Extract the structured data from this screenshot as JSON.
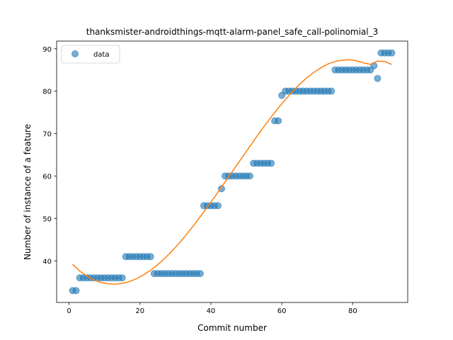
{
  "chart_data": {
    "type": "scatter",
    "title": "thanksmister-androidthings-mqtt-alarm-panel_safe_call-polinomial_3",
    "xlabel": "Commit number",
    "ylabel": "Number of instance of a feature",
    "xlim": [
      -3.5,
      95.5
    ],
    "ylim": [
      30.2,
      91.8
    ],
    "xticks": [
      0,
      20,
      40,
      60,
      80
    ],
    "yticks": [
      40,
      50,
      60,
      70,
      80,
      90
    ],
    "legend": {
      "position": "top-left",
      "entries": [
        "data"
      ]
    },
    "grid": false,
    "series": [
      {
        "name": "data",
        "kind": "points",
        "color": "#1f77b4",
        "x": [
          1,
          2,
          3,
          4,
          5,
          6,
          7,
          8,
          9,
          10,
          11,
          12,
          13,
          14,
          15,
          16,
          17,
          18,
          19,
          20,
          21,
          22,
          23,
          24,
          25,
          26,
          27,
          28,
          29,
          30,
          31,
          32,
          33,
          34,
          35,
          36,
          37,
          38,
          39,
          40,
          41,
          42,
          43,
          44,
          45,
          46,
          47,
          48,
          49,
          50,
          51,
          52,
          53,
          54,
          55,
          56,
          57,
          58,
          59,
          60,
          61,
          62,
          63,
          64,
          65,
          66,
          67,
          68,
          69,
          70,
          71,
          72,
          73,
          74,
          75,
          76,
          77,
          78,
          79,
          80,
          81,
          82,
          83,
          84,
          85,
          86,
          87,
          88,
          89,
          90,
          91
        ],
        "y": [
          33,
          33,
          36,
          36,
          36,
          36,
          36,
          36,
          36,
          36,
          36,
          36,
          36,
          36,
          36,
          41,
          41,
          41,
          41,
          41,
          41,
          41,
          41,
          37,
          37,
          37,
          37,
          37,
          37,
          37,
          37,
          37,
          37,
          37,
          37,
          37,
          37,
          53,
          53,
          53,
          53,
          53,
          57,
          60,
          60,
          60,
          60,
          60,
          60,
          60,
          60,
          63,
          63,
          63,
          63,
          63,
          63,
          73,
          73,
          79,
          80,
          80,
          80,
          80,
          80,
          80,
          80,
          80,
          80,
          80,
          80,
          80,
          80,
          80,
          85,
          85,
          85,
          85,
          85,
          85,
          85,
          85,
          85,
          85,
          85,
          86,
          83,
          89,
          89,
          89,
          89
        ]
      },
      {
        "kind": "fit-line",
        "color": "#ff7f0e",
        "x": [
          1,
          3,
          5,
          7,
          9,
          11,
          13,
          15,
          17,
          19,
          21,
          23,
          25,
          27,
          29,
          31,
          33,
          35,
          37,
          39,
          41,
          43,
          45,
          47,
          49,
          51,
          53,
          55,
          57,
          59,
          61,
          63,
          65,
          67,
          69,
          71,
          73,
          75,
          77,
          79,
          81,
          83,
          85,
          87,
          89,
          91
        ],
        "y": [
          39.2,
          37.6,
          36.4,
          35.5,
          34.9,
          34.6,
          34.5,
          34.7,
          35.1,
          35.8,
          36.7,
          37.8,
          39.1,
          40.6,
          42.3,
          44.1,
          46.1,
          48.2,
          50.4,
          52.7,
          55.0,
          57.4,
          59.8,
          62.2,
          64.6,
          67.0,
          69.4,
          71.7,
          73.9,
          76.0,
          78.0,
          79.9,
          81.6,
          83.1,
          84.4,
          85.5,
          86.4,
          87.0,
          87.3,
          87.4,
          87.2,
          86.7,
          86.3,
          87.1,
          87.0,
          86.3
        ]
      }
    ]
  }
}
